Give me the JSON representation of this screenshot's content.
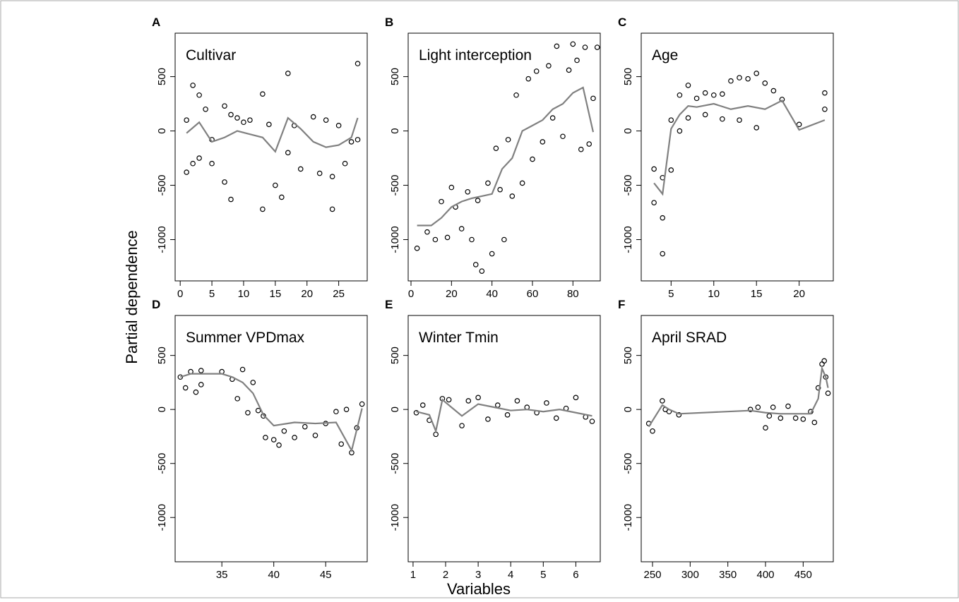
{
  "xlabel": "Variables",
  "ylabel": "Partial dependence",
  "chart_data": [
    {
      "type": "scatter",
      "panel_label": "A",
      "title": "Cultivar",
      "xlim": [
        -0.8,
        29.5
      ],
      "ylim": [
        -1380,
        900
      ],
      "xticks": [
        0,
        5,
        10,
        15,
        20,
        25
      ],
      "yticks": [
        500,
        0,
        -500,
        -1000
      ],
      "points": {
        "color": "#000000",
        "x": [
          1,
          1,
          2,
          2,
          3,
          3,
          4,
          5,
          5,
          7,
          7,
          8,
          8,
          9,
          10,
          11,
          13,
          13,
          14,
          15,
          16,
          17,
          17,
          18,
          19,
          21,
          22,
          23,
          24,
          24,
          25,
          26,
          27,
          28,
          28
        ],
        "y": [
          100,
          -380,
          420,
          -300,
          330,
          -250,
          200,
          -80,
          -300,
          230,
          -470,
          150,
          -630,
          120,
          80,
          100,
          340,
          -720,
          60,
          -500,
          -610,
          530,
          -200,
          50,
          -350,
          130,
          -390,
          100,
          -720,
          -420,
          50,
          -300,
          -100,
          620,
          -80
        ]
      },
      "line": {
        "color": "#808080",
        "x": [
          1,
          3,
          5,
          7,
          9,
          11,
          13,
          15,
          17,
          19,
          21,
          23,
          25,
          27,
          28
        ],
        "y": [
          -20,
          80,
          -100,
          -60,
          0,
          -30,
          -60,
          -190,
          120,
          20,
          -100,
          -150,
          -130,
          -60,
          120
        ]
      }
    },
    {
      "type": "scatter",
      "panel_label": "B",
      "title": "Light interception",
      "xlim": [
        -1.4,
        93.5
      ],
      "ylim": [
        -1380,
        900
      ],
      "xticks": [
        0,
        20,
        40,
        60,
        80
      ],
      "yticks": [
        500,
        0,
        -500,
        -1000
      ],
      "points": {
        "color": "#000000",
        "x": [
          3,
          8,
          12,
          15,
          18,
          20,
          22,
          25,
          28,
          30,
          32,
          33,
          35,
          38,
          40,
          42,
          44,
          46,
          48,
          50,
          52,
          55,
          58,
          60,
          62,
          65,
          68,
          70,
          72,
          75,
          78,
          80,
          82,
          84,
          86,
          88,
          90,
          92
        ],
        "y": [
          -1080,
          -930,
          -1000,
          -650,
          -980,
          -520,
          -700,
          -900,
          -560,
          -1000,
          -1230,
          -640,
          -1290,
          -480,
          -1130,
          -160,
          -540,
          -1000,
          -80,
          -600,
          330,
          -480,
          480,
          -260,
          550,
          -100,
          600,
          120,
          780,
          -50,
          560,
          800,
          650,
          -170,
          770,
          -120,
          300,
          770
        ]
      },
      "line": {
        "color": "#808080",
        "x": [
          3,
          10,
          15,
          20,
          25,
          30,
          35,
          40,
          45,
          50,
          55,
          60,
          65,
          70,
          75,
          80,
          85,
          90
        ],
        "y": [
          -870,
          -870,
          -800,
          -700,
          -650,
          -620,
          -600,
          -580,
          -350,
          -250,
          0,
          50,
          100,
          200,
          250,
          350,
          400,
          -10
        ]
      }
    },
    {
      "type": "scatter",
      "panel_label": "C",
      "title": "Age",
      "xlim": [
        1.5,
        24
      ],
      "ylim": [
        -1380,
        900
      ],
      "xticks": [
        5,
        10,
        15,
        20
      ],
      "yticks": [
        500,
        0,
        -500,
        -1000
      ],
      "points": {
        "color": "#000000",
        "x": [
          3,
          3,
          4,
          4,
          4,
          5,
          5,
          6,
          6,
          7,
          7,
          8,
          9,
          9,
          10,
          11,
          11,
          12,
          13,
          13,
          14,
          15,
          15,
          16,
          17,
          18,
          20,
          23,
          23
        ],
        "y": [
          -350,
          -660,
          -430,
          -800,
          -1130,
          100,
          -360,
          330,
          0,
          420,
          120,
          300,
          350,
          150,
          330,
          340,
          110,
          460,
          490,
          100,
          480,
          530,
          30,
          440,
          370,
          290,
          60,
          350,
          200
        ]
      },
      "line": {
        "color": "#808080",
        "x": [
          3,
          4,
          5,
          6,
          7,
          8,
          10,
          12,
          14,
          16,
          18,
          20,
          23
        ],
        "y": [
          -480,
          -580,
          20,
          150,
          230,
          220,
          250,
          200,
          230,
          200,
          280,
          10,
          100
        ]
      }
    },
    {
      "type": "scatter",
      "panel_label": "D",
      "title": "Summer VPDmax",
      "xlim": [
        30.5,
        49
      ],
      "ylim": [
        -1410,
        870
      ],
      "xticks": [
        35,
        40,
        45
      ],
      "yticks": [
        500,
        0,
        -500,
        -1000
      ],
      "points": {
        "color": "#000000",
        "x": [
          31,
          31.5,
          32,
          32.5,
          33,
          33,
          35,
          36,
          36.5,
          37,
          37.5,
          38,
          38.5,
          39,
          39.2,
          40,
          40.5,
          41,
          42,
          43,
          44,
          45,
          46,
          46.5,
          47,
          47.5,
          48,
          48.5
        ],
        "y": [
          300,
          200,
          350,
          160,
          360,
          230,
          350,
          280,
          100,
          370,
          -30,
          250,
          -10,
          -60,
          -260,
          -280,
          -330,
          -200,
          -260,
          -160,
          -240,
          -130,
          -20,
          -320,
          0,
          -400,
          -170,
          50
        ]
      },
      "line": {
        "color": "#808080",
        "x": [
          31,
          32,
          33,
          35,
          36,
          37,
          38,
          39,
          40,
          42,
          44,
          46,
          47.5,
          48.5
        ],
        "y": [
          300,
          330,
          330,
          330,
          300,
          250,
          150,
          -50,
          -150,
          -120,
          -130,
          -120,
          -380,
          10
        ]
      }
    },
    {
      "type": "scatter",
      "panel_label": "E",
      "title": "Winter Tmin",
      "xlim": [
        0.85,
        6.75
      ],
      "ylim": [
        -1410,
        870
      ],
      "xticks": [
        1,
        2,
        3,
        4,
        5,
        6
      ],
      "yticks": [
        500,
        0,
        -500,
        -1000
      ],
      "points": {
        "color": "#000000",
        "x": [
          1.1,
          1.3,
          1.5,
          1.7,
          1.9,
          2.1,
          2.5,
          2.7,
          3,
          3.3,
          3.6,
          3.9,
          4.2,
          4.5,
          4.8,
          5.1,
          5.4,
          5.7,
          6,
          6.3,
          6.5
        ],
        "y": [
          -30,
          40,
          -100,
          -230,
          100,
          90,
          -150,
          80,
          110,
          -90,
          40,
          -50,
          80,
          20,
          -30,
          60,
          -80,
          10,
          110,
          -70,
          -110
        ]
      },
      "line": {
        "color": "#808080",
        "x": [
          1.1,
          1.5,
          1.7,
          1.9,
          2.5,
          3,
          3.5,
          4,
          4.5,
          5,
          5.5,
          6,
          6.5
        ],
        "y": [
          -20,
          -50,
          -200,
          90,
          -60,
          50,
          20,
          -10,
          0,
          -20,
          0,
          -30,
          -60
        ]
      }
    },
    {
      "type": "scatter",
      "panel_label": "F",
      "title": "April SRAD",
      "xlim": [
        235,
        490
      ],
      "ylim": [
        -1410,
        870
      ],
      "xticks": [
        250,
        300,
        350,
        400,
        450
      ],
      "yticks": [
        500,
        0,
        -500,
        -1000
      ],
      "points": {
        "color": "#000000",
        "x": [
          245,
          250,
          263,
          267,
          272,
          285,
          380,
          390,
          400,
          405,
          410,
          420,
          430,
          440,
          450,
          460,
          465,
          470,
          475,
          478,
          480,
          483
        ],
        "y": [
          -130,
          -200,
          80,
          0,
          -20,
          -50,
          0,
          20,
          -170,
          -60,
          20,
          -80,
          30,
          -80,
          -90,
          -20,
          -120,
          200,
          420,
          450,
          300,
          150
        ]
      },
      "line": {
        "color": "#808080",
        "x": [
          245,
          263,
          272,
          285,
          380,
          400,
          420,
          440,
          460,
          470,
          475,
          480,
          483
        ],
        "y": [
          -160,
          40,
          0,
          -40,
          -10,
          -30,
          -40,
          -40,
          -40,
          100,
          380,
          300,
          200
        ]
      }
    }
  ]
}
